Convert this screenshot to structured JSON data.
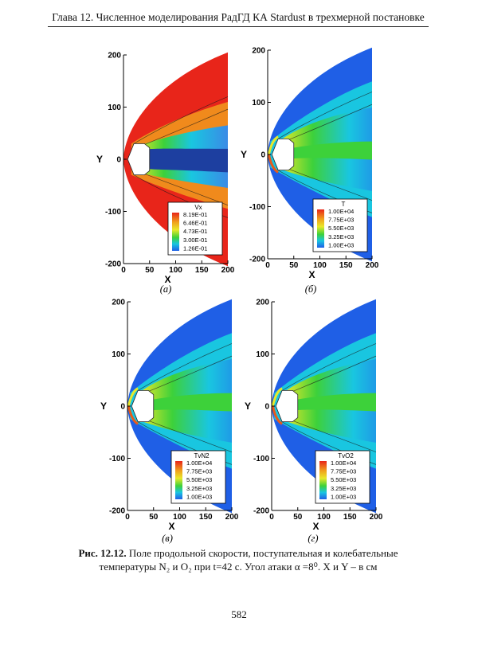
{
  "header": {
    "running_title": "Глава 12. Численное моделирования РадГД КА Stardust в трехмерной постановке"
  },
  "figures": [
    {
      "panel": "(а)",
      "legend_title": "Vx",
      "legend_values": [
        "8.19E-01",
        "6.46E-01",
        "4.73E-01",
        "3.00E-01",
        "1.26E-01"
      ],
      "scheme": "vx"
    },
    {
      "panel": "(б)",
      "legend_title": "T",
      "legend_values": [
        "1.00E+04",
        "7.75E+03",
        "5.50E+03",
        "3.25E+03",
        "1.00E+03"
      ],
      "scheme": "temp"
    },
    {
      "panel": "(в)",
      "legend_title": "TvN2",
      "legend_values": [
        "1.00E+04",
        "7.75E+03",
        "5.50E+03",
        "3.25E+03",
        "1.00E+03"
      ],
      "scheme": "temp"
    },
    {
      "panel": "(г)",
      "legend_title": "TvO2",
      "legend_values": [
        "1.00E+04",
        "7.75E+03",
        "5.50E+03",
        "3.25E+03",
        "1.00E+03"
      ],
      "scheme": "temp"
    }
  ],
  "axes": {
    "xlabel": "X",
    "ylabel": "Y",
    "xticks": [
      "0",
      "50",
      "100",
      "150",
      "200"
    ],
    "yticks": [
      "200",
      "100",
      "0",
      "-100",
      "-200"
    ]
  },
  "caption": {
    "label": "Рис. 12.12.",
    "line1": "Поле продольной скорости, поступательная и колебательные",
    "line2": "температуры N₂ и O₂ при t=42 с. Угол атаки  α =8⁰. X и Y – в см"
  },
  "page_number": "582",
  "colors": {
    "red": "#e8251a",
    "orange": "#f08a1c",
    "yellow": "#e9e82a",
    "green": "#3dd13a",
    "cyan": "#19c6e0",
    "blue": "#1f5fe6"
  }
}
